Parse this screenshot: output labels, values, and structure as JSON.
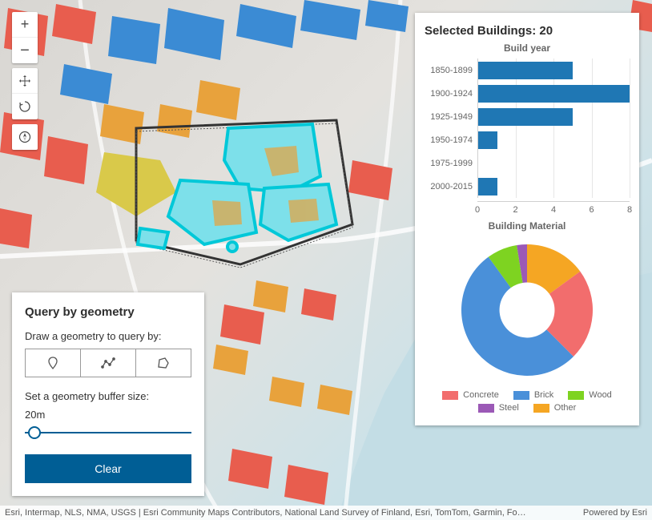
{
  "map": {
    "building_colors": {
      "red": "#e85d4e",
      "blue": "#3b8bd4",
      "orange": "#e8a23c",
      "yellow": "#d9c94a",
      "highlight_fill": "#7de0ea",
      "highlight_stroke": "#00c8d8"
    },
    "water_color": "#c3dde5",
    "terrain_color": "#dcd9d4",
    "attribution_left": "Esri, Intermap, NLS, NMA, USGS | Esri Community Maps Contributors, National Land Survey of Finland, Esri, TomTom, Garmin, Fo…",
    "attribution_right": "Powered by Esri"
  },
  "nav": {
    "zoom_in": "+",
    "zoom_out": "−"
  },
  "query_panel": {
    "title": "Query by geometry",
    "draw_label": "Draw a geometry to query by:",
    "buffer_label": "Set a geometry buffer size:",
    "buffer_value": "20m",
    "buffer_pct": 2,
    "clear_label": "Clear",
    "accent_color": "#005e95"
  },
  "results": {
    "title_prefix": "Selected Buildings: ",
    "count": 20,
    "bar_chart": {
      "title": "Build year",
      "type": "bar",
      "color": "#1f77b4",
      "grid_color": "#e6e6e6",
      "xlim": [
        0,
        8
      ],
      "xtick_step": 2,
      "xticks": [
        0,
        2,
        4,
        6,
        8
      ],
      "categories": [
        "1850-1899",
        "1900-1924",
        "1925-1949",
        "1950-1974",
        "1975-1999",
        "2000-2015"
      ],
      "values": [
        5,
        8,
        5,
        1,
        0,
        1
      ]
    },
    "donut": {
      "title": "Building Material",
      "type": "donut",
      "inner_radius_pct": 42,
      "background_color": "#ffffff",
      "slices": [
        {
          "label": "Other",
          "value": 15,
          "color": "#f5a623"
        },
        {
          "label": "Concrete",
          "value": 22.5,
          "color": "#f26d6d"
        },
        {
          "label": "Brick",
          "value": 52.5,
          "color": "#4a90d9"
        },
        {
          "label": "Wood",
          "value": 7.5,
          "color": "#7ed321"
        },
        {
          "label": "Steel",
          "value": 2.5,
          "color": "#9b59b6"
        }
      ],
      "legend_order": [
        "Concrete",
        "Brick",
        "Wood",
        "Steel",
        "Other"
      ]
    }
  }
}
